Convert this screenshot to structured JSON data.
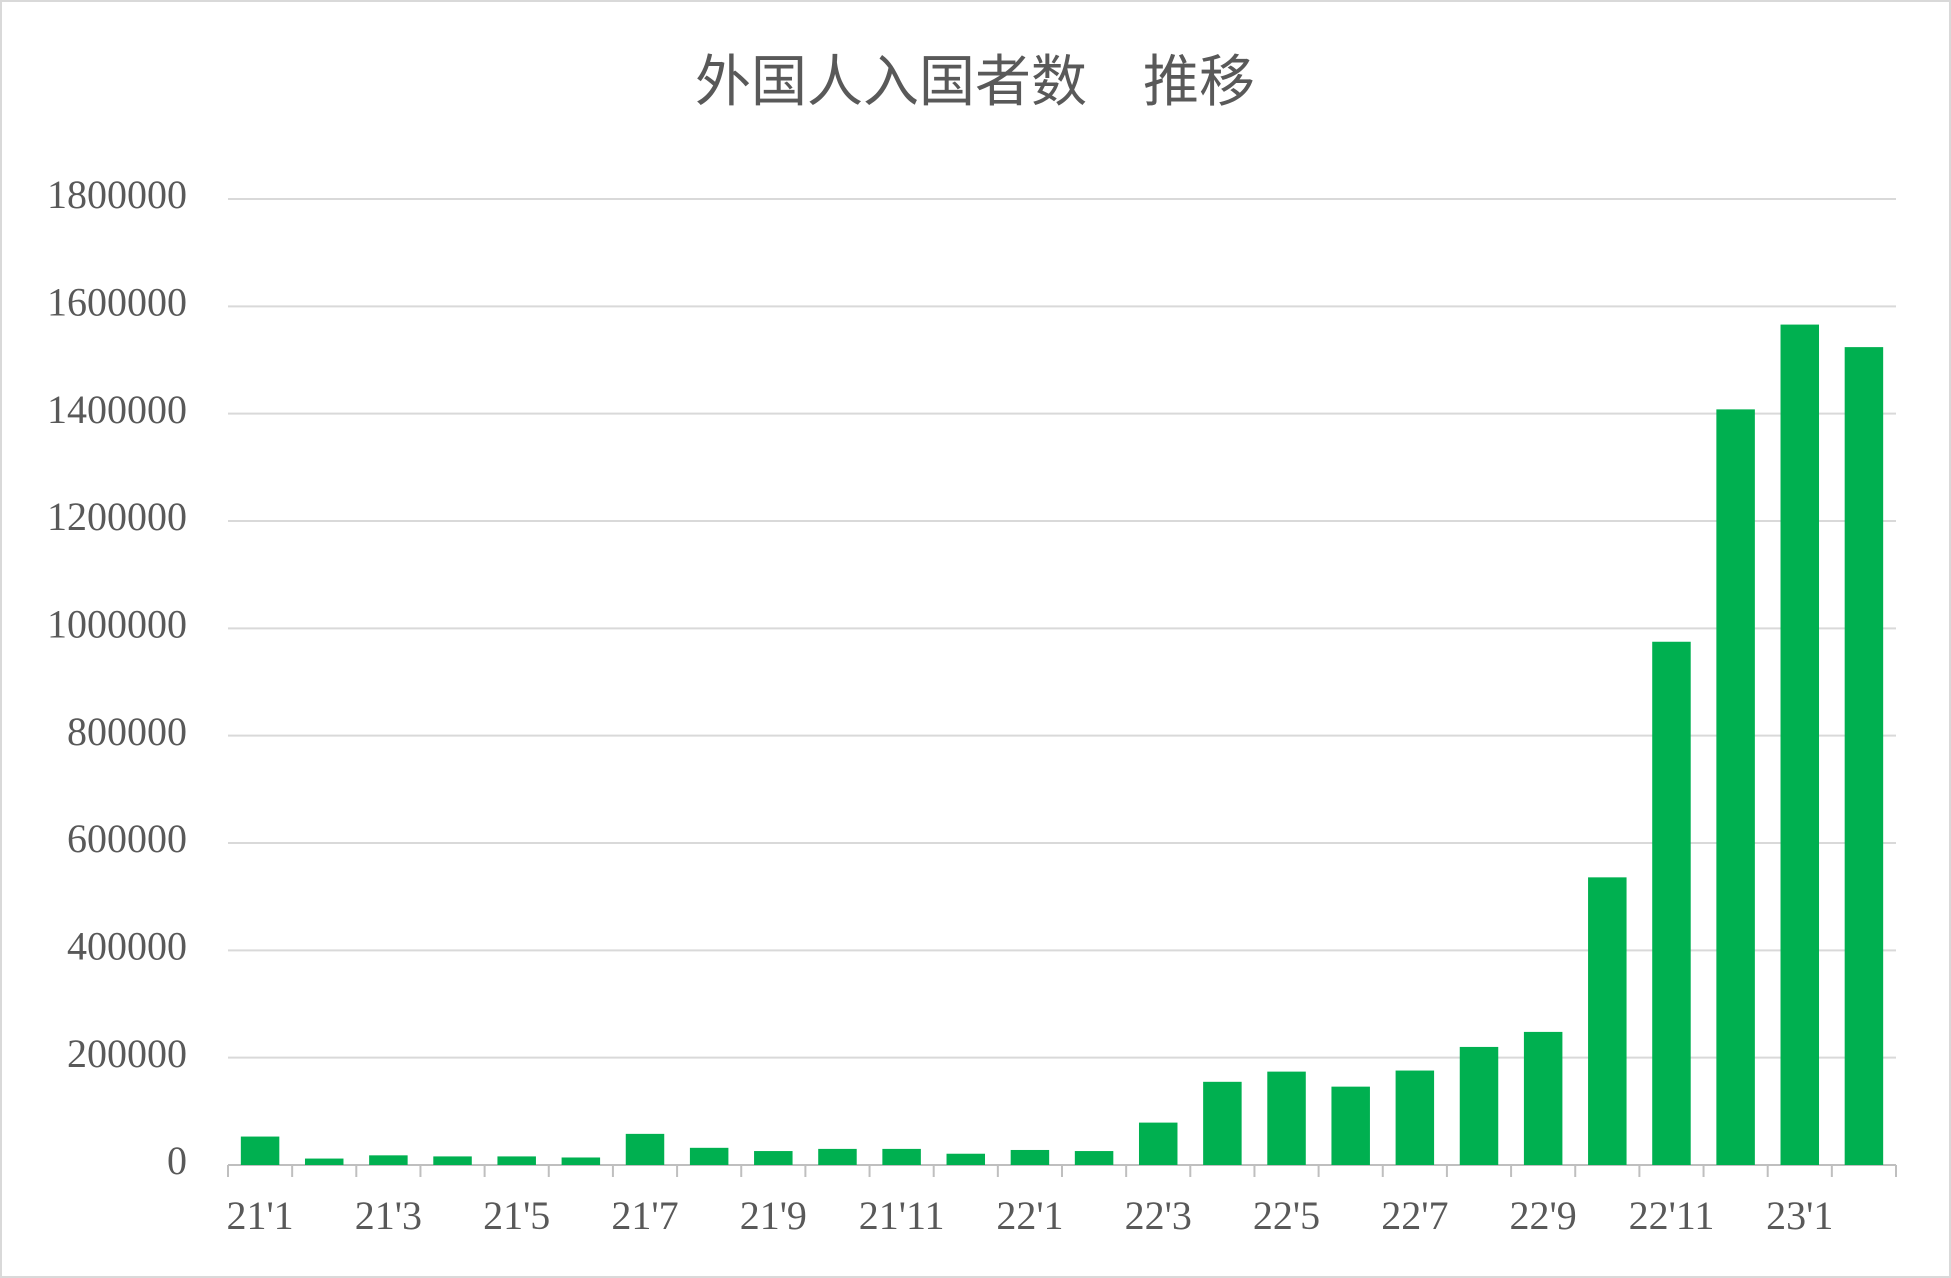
{
  "chart_data": {
    "type": "bar",
    "title": "外国人入国者数　推移",
    "categories": [
      "21'1",
      null,
      "21'3",
      null,
      "21'5",
      null,
      "21'7",
      null,
      "21'9",
      null,
      "21'11",
      null,
      "22'1",
      null,
      "22'3",
      null,
      "22'5",
      null,
      "22'7",
      null,
      "22'9",
      null,
      "22'11",
      null,
      "23'1",
      null
    ],
    "values": [
      53000,
      12000,
      18000,
      16000,
      16000,
      14000,
      58000,
      32000,
      26000,
      30000,
      30000,
      21000,
      28000,
      26000,
      79000,
      155000,
      174000,
      146000,
      176000,
      220000,
      248000,
      536000,
      975000,
      1408000,
      1566000,
      1524000
    ],
    "color": "#00b050",
    "ylim": [
      0,
      1800000
    ],
    "yticks": [
      0,
      200000,
      400000,
      600000,
      800000,
      1000000,
      1200000,
      1400000,
      1600000,
      1800000
    ],
    "grid": true
  }
}
